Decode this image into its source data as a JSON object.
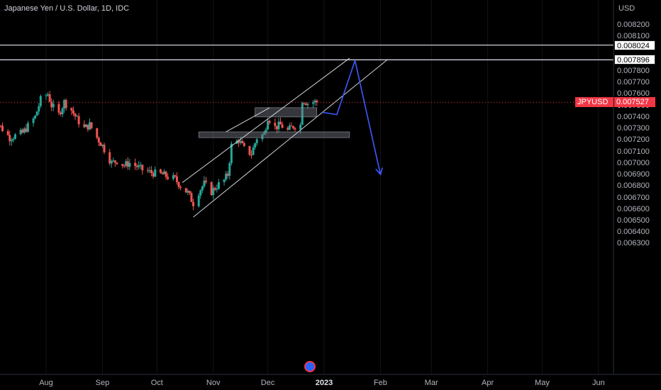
{
  "header": {
    "title": "Japanese Yen / U.S. Dollar, 1D, IDC"
  },
  "axis": {
    "unit": "USD"
  },
  "chart_data": {
    "type": "candlestick",
    "title": "Japanese Yen / U.S. Dollar, 1D, IDC",
    "symbol": "JPYUSD",
    "last_price": "0.007527",
    "ylim": [
      0.00627,
      0.00832
    ],
    "y_ticks": [
      "0.008200",
      "0.008100",
      "0.008000",
      "0.007900",
      "0.007800",
      "0.007700",
      "0.007600",
      "0.007500",
      "0.007400",
      "0.007300",
      "0.007200",
      "0.007100",
      "0.007000",
      "0.006900",
      "0.006800",
      "0.006700",
      "0.006600",
      "0.006500",
      "0.006400",
      "0.006300"
    ],
    "y_tick_values": [
      0.0082,
      0.0081,
      0.008,
      0.0079,
      0.0078,
      0.0077,
      0.0076,
      0.0075,
      0.0074,
      0.0073,
      0.0072,
      0.0071,
      0.007,
      0.0069,
      0.0068,
      0.0067,
      0.0066,
      0.0065,
      0.0064,
      0.0063
    ],
    "x_ticks": [
      {
        "label": "Aug",
        "date": "2022-08-01",
        "bold": false
      },
      {
        "label": "Sep",
        "date": "2022-09-01",
        "bold": false
      },
      {
        "label": "Oct",
        "date": "2022-10-01",
        "bold": false
      },
      {
        "label": "Nov",
        "date": "2022-11-01",
        "bold": false
      },
      {
        "label": "Dec",
        "date": "2022-12-01",
        "bold": false
      },
      {
        "label": "2023",
        "date": "2023-01-01",
        "bold": true
      },
      {
        "label": "Feb",
        "date": "2023-02-01",
        "bold": false
      },
      {
        "label": "Mar",
        "date": "2023-03-01",
        "bold": false
      },
      {
        "label": "Apr",
        "date": "2023-04-01",
        "bold": false
      },
      {
        "label": "May",
        "date": "2023-05-01",
        "bold": false
      },
      {
        "label": "Jun",
        "date": "2023-06-01",
        "bold": false
      }
    ],
    "horizontal_levels": [
      {
        "value": 0.008024,
        "label": "0.008024"
      },
      {
        "value": 0.007896,
        "label": "0.007896"
      }
    ],
    "price_path": [
      [
        "2022-07-05",
        0.00735
      ],
      [
        "2022-07-12",
        0.00722
      ],
      [
        "2022-07-19",
        0.00726
      ],
      [
        "2022-07-26",
        0.0074
      ],
      [
        "2022-07-29",
        0.00755
      ],
      [
        "2022-08-02",
        0.0076
      ],
      [
        "2022-08-04",
        0.0075
      ],
      [
        "2022-08-08",
        0.00742
      ],
      [
        "2022-08-11",
        0.00753
      ],
      [
        "2022-08-15",
        0.00746
      ],
      [
        "2022-08-18",
        0.00738
      ],
      [
        "2022-08-22",
        0.0073
      ],
      [
        "2022-08-25",
        0.00733
      ],
      [
        "2022-08-29",
        0.00722
      ],
      [
        "2022-09-01",
        0.00715
      ],
      [
        "2022-09-06",
        0.007
      ],
      [
        "2022-09-09",
        0.00702
      ],
      [
        "2022-09-13",
        0.00698
      ],
      [
        "2022-09-16",
        0.007
      ],
      [
        "2022-09-20",
        0.00697
      ],
      [
        "2022-09-23",
        0.00694
      ],
      [
        "2022-09-27",
        0.00692
      ],
      [
        "2022-09-30",
        0.00691
      ],
      [
        "2022-10-04",
        0.0069
      ],
      [
        "2022-10-07",
        0.00688
      ],
      [
        "2022-10-11",
        0.00686
      ],
      [
        "2022-10-14",
        0.0068
      ],
      [
        "2022-10-18",
        0.00674
      ],
      [
        "2022-10-21",
        0.00665
      ],
      [
        "2022-10-24",
        0.00675
      ],
      [
        "2022-10-27",
        0.00682
      ],
      [
        "2022-10-31",
        0.00675
      ],
      [
        "2022-11-03",
        0.0068
      ],
      [
        "2022-11-07",
        0.00685
      ],
      [
        "2022-11-09",
        0.0069
      ],
      [
        "2022-11-11",
        0.00715
      ],
      [
        "2022-11-15",
        0.0072
      ],
      [
        "2022-11-18",
        0.00712
      ],
      [
        "2022-11-22",
        0.00708
      ],
      [
        "2022-11-25",
        0.00722
      ],
      [
        "2022-11-29",
        0.00725
      ],
      [
        "2022-12-01",
        0.0074
      ],
      [
        "2022-12-05",
        0.00731
      ],
      [
        "2022-12-08",
        0.00733
      ],
      [
        "2022-12-12",
        0.00728
      ],
      [
        "2022-12-15",
        0.00732
      ],
      [
        "2022-12-19",
        0.00733
      ],
      [
        "2022-12-20",
        0.00755
      ],
      [
        "2022-12-23",
        0.00752
      ],
      [
        "2022-12-27",
        0.00753
      ]
    ],
    "zones": [
      {
        "from": "2022-11-24",
        "to": "2022-12-28",
        "y": [
          0.0074,
          0.00748
        ]
      },
      {
        "from": "2022-10-24",
        "to": "2023-01-15",
        "y": [
          0.00722,
          0.00727
        ]
      }
    ],
    "channel": {
      "upper": [
        [
          "2022-10-15",
          0.00683
        ],
        [
          "2023-01-15",
          0.00791
        ]
      ],
      "lower": [
        [
          "2022-10-21",
          0.00653
        ],
        [
          "2023-02-05",
          0.0079
        ]
      ],
      "mid": [
        [
          "2022-11-08",
          0.00727
        ],
        [
          "2022-12-02",
          0.00748
        ]
      ]
    },
    "projection": [
      [
        "2022-12-31",
        0.00744
      ],
      [
        "2023-01-08",
        0.00742
      ],
      [
        "2023-01-18",
        0.00789
      ],
      [
        "2023-02-01",
        0.0069
      ]
    ],
    "grid": false,
    "legend": "none"
  }
}
